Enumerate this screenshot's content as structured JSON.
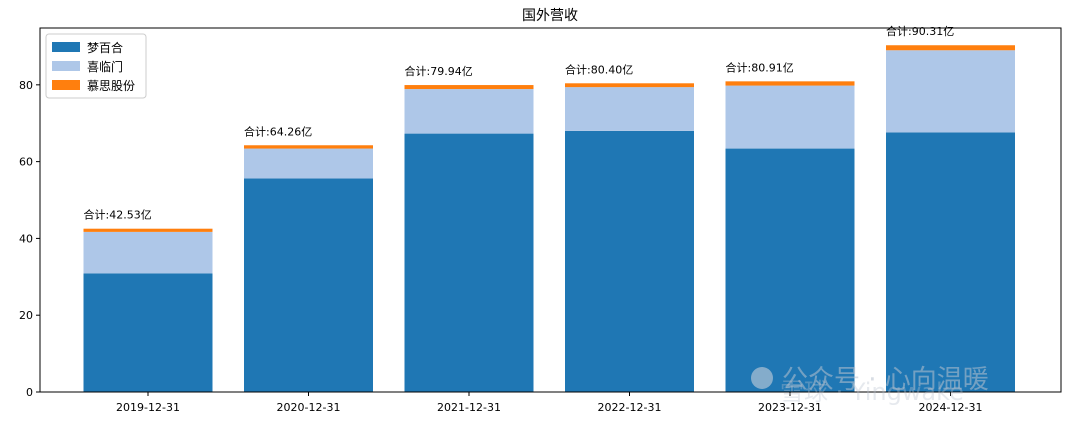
{
  "chart_data": {
    "type": "bar",
    "stacked": true,
    "title": "国外营收",
    "xlabel": "",
    "ylabel": "",
    "categories": [
      "2019-12-31",
      "2020-12-31",
      "2021-12-31",
      "2022-12-31",
      "2023-12-31",
      "2024-12-31"
    ],
    "series": [
      {
        "name": "梦百合",
        "color": "#1f77b4",
        "values": [
          30.9,
          55.6,
          67.3,
          68.0,
          63.4,
          67.6
        ]
      },
      {
        "name": "喜临门",
        "color": "#aec7e8",
        "values": [
          10.8,
          7.8,
          11.6,
          11.4,
          16.4,
          21.4
        ]
      },
      {
        "name": "慕思股份",
        "color": "#ff7f0e",
        "values": [
          0.83,
          0.86,
          1.04,
          1.0,
          1.11,
          1.31
        ]
      }
    ],
    "totals": [
      "合计:42.53亿",
      "合计:64.26亿",
      "合计:79.94亿",
      "合计:80.40亿",
      "合计:80.91亿",
      "合计:90.31亿"
    ],
    "yticks": [
      0,
      20,
      40,
      60,
      80
    ],
    "ylim": [
      0,
      94.8
    ],
    "grid": false,
    "legend_position": "top-left"
  },
  "watermark": {
    "text": "公众号 · 心向温暖",
    "brand": "雪球 · Yingwake"
  }
}
